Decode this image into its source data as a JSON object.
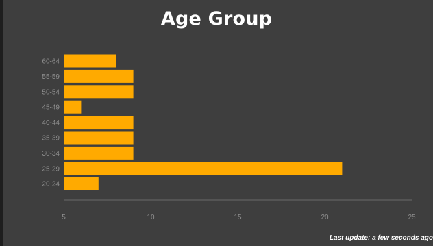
{
  "chart_data": {
    "type": "bar",
    "orientation": "horizontal",
    "title": "Age Group",
    "xlabel": "",
    "ylabel": "",
    "categories": [
      "60-64",
      "55-59",
      "50-54",
      "45-49",
      "40-44",
      "35-39",
      "30-34",
      "25-29",
      "20-24"
    ],
    "values": [
      8,
      9,
      9,
      6,
      9,
      9,
      9,
      21,
      7
    ],
    "xlim": [
      5,
      25
    ],
    "xticks": [
      5,
      10,
      15,
      20,
      25
    ],
    "bar_color": "#FFAA00",
    "grid": false,
    "legend": "none"
  },
  "footer": {
    "text": "Last update: a few seconds ago"
  },
  "colors": {
    "background": "#3E3E3E",
    "frame": "#1E1E1E",
    "title": "#FFFFFF",
    "tick_text": "#8F8F8F",
    "axis_line": "#6A6A6A"
  }
}
